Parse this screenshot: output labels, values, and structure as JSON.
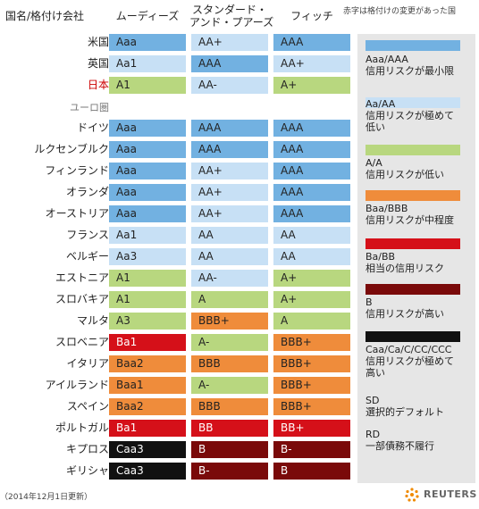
{
  "headers": {
    "country": "国名/格付け会社",
    "moodys": "ムーディーズ",
    "sp_line1": "スタンダード・",
    "sp_line2": "アンド・プアーズ",
    "fitch": "フィッチ",
    "note": "赤字は格付けの変更があった国"
  },
  "section_label": "ユーロ圏",
  "colors": {
    "aaa": "#72b1e1",
    "aa": "#c7e0f5",
    "a": "#b8d77f",
    "bbb": "#ef8c3b",
    "bb": "#d51019",
    "b": "#7a0a0a",
    "caa": "#111111",
    "red_text": "#cc0000"
  },
  "chart_data": {
    "type": "table",
    "columns": [
      "ムーディーズ",
      "スタンダード・アンド・プアーズ",
      "フィッチ"
    ],
    "rows": [
      {
        "country": "米国",
        "changed": false,
        "ratings": [
          "Aaa",
          "AA+",
          "AAA"
        ],
        "classes": [
          "aaa",
          "aa",
          "aaa"
        ]
      },
      {
        "country": "英国",
        "changed": false,
        "ratings": [
          "Aa1",
          "AAA",
          "AA+"
        ],
        "classes": [
          "aa",
          "aaa",
          "aa"
        ]
      },
      {
        "country": "日本",
        "changed": true,
        "ratings": [
          "A1",
          "AA-",
          "A+"
        ],
        "classes": [
          "a",
          "aa",
          "a"
        ]
      },
      {
        "country": "ドイツ",
        "changed": false,
        "ratings": [
          "Aaa",
          "AAA",
          "AAA"
        ],
        "classes": [
          "aaa",
          "aaa",
          "aaa"
        ]
      },
      {
        "country": "ルクセンブルク",
        "changed": false,
        "ratings": [
          "Aaa",
          "AAA",
          "AAA"
        ],
        "classes": [
          "aaa",
          "aaa",
          "aaa"
        ]
      },
      {
        "country": "フィンランド",
        "changed": false,
        "ratings": [
          "Aaa",
          "AA+",
          "AAA"
        ],
        "classes": [
          "aaa",
          "aa",
          "aaa"
        ]
      },
      {
        "country": "オランダ",
        "changed": false,
        "ratings": [
          "Aaa",
          "AA+",
          "AAA"
        ],
        "classes": [
          "aaa",
          "aa",
          "aaa"
        ]
      },
      {
        "country": "オーストリア",
        "changed": false,
        "ratings": [
          "Aaa",
          "AA+",
          "AAA"
        ],
        "classes": [
          "aaa",
          "aa",
          "aaa"
        ]
      },
      {
        "country": "フランス",
        "changed": false,
        "ratings": [
          "Aa1",
          "AA",
          "AA"
        ],
        "classes": [
          "aa",
          "aa",
          "aa"
        ]
      },
      {
        "country": "ベルギー",
        "changed": false,
        "ratings": [
          "Aa3",
          "AA",
          "AA"
        ],
        "classes": [
          "aa",
          "aa",
          "aa"
        ]
      },
      {
        "country": "エストニア",
        "changed": false,
        "ratings": [
          "A1",
          "AA-",
          "A+"
        ],
        "classes": [
          "a",
          "aa",
          "a"
        ]
      },
      {
        "country": "スロバキア",
        "changed": false,
        "ratings": [
          "A1",
          "A",
          "A+"
        ],
        "classes": [
          "a",
          "a",
          "a"
        ]
      },
      {
        "country": "マルタ",
        "changed": false,
        "ratings": [
          "A3",
          "BBB+",
          "A"
        ],
        "classes": [
          "a",
          "bbb",
          "a"
        ]
      },
      {
        "country": "スロベニア",
        "changed": false,
        "ratings": [
          "Ba1",
          "A-",
          "BBB+"
        ],
        "classes": [
          "bb",
          "a",
          "bbb"
        ]
      },
      {
        "country": "イタリア",
        "changed": false,
        "ratings": [
          "Baa2",
          "BBB",
          "BBB+"
        ],
        "classes": [
          "bbb",
          "bbb",
          "bbb"
        ]
      },
      {
        "country": "アイルランド",
        "changed": false,
        "ratings": [
          "Baa1",
          "A-",
          "BBB+"
        ],
        "classes": [
          "bbb",
          "a",
          "bbb"
        ]
      },
      {
        "country": "スペイン",
        "changed": false,
        "ratings": [
          "Baa2",
          "BBB",
          "BBB+"
        ],
        "classes": [
          "bbb",
          "bbb",
          "bbb"
        ]
      },
      {
        "country": "ポルトガル",
        "changed": false,
        "ratings": [
          "Ba1",
          "BB",
          "BB+"
        ],
        "classes": [
          "bb",
          "bb",
          "bb"
        ]
      },
      {
        "country": "キプロス",
        "changed": false,
        "ratings": [
          "Caa3",
          "B",
          "B-"
        ],
        "classes": [
          "caa",
          "b",
          "b"
        ]
      },
      {
        "country": "ギリシャ",
        "changed": false,
        "ratings": [
          "Caa3",
          "B-",
          "B"
        ],
        "classes": [
          "caa",
          "b",
          "b"
        ]
      }
    ]
  },
  "legend": [
    {
      "key": "aaa",
      "lines": [
        "Aaa/AAA",
        "信用リスクが最小限"
      ],
      "swatch": true
    },
    {
      "key": "aa",
      "lines": [
        "Aa/AA",
        "信用リスクが極めて",
        "低い"
      ],
      "swatch": true
    },
    {
      "key": "a",
      "lines": [
        "A/A",
        "信用リスクが低い"
      ],
      "swatch": true
    },
    {
      "key": "bbb",
      "lines": [
        "Baa/BBB",
        "信用リスクが中程度"
      ],
      "swatch": true
    },
    {
      "key": "bb",
      "lines": [
        "Ba/BB",
        "相当の信用リスク"
      ],
      "swatch": true
    },
    {
      "key": "b",
      "lines": [
        "B",
        "信用リスクが高い"
      ],
      "swatch": true
    },
    {
      "key": "caa",
      "lines": [
        "Caa/Ca/C/CC/CCC",
        "信用リスクが極めて",
        "高い"
      ],
      "swatch": true
    },
    {
      "key": "sd",
      "lines": [
        "SD",
        "選択的デフォルト"
      ],
      "swatch": false
    },
    {
      "key": "rd",
      "lines": [
        "RD",
        "一部債務不履行"
      ],
      "swatch": false
    }
  ],
  "footer": {
    "date": "（2014年12月1日更新）",
    "brand": "REUTERS"
  }
}
